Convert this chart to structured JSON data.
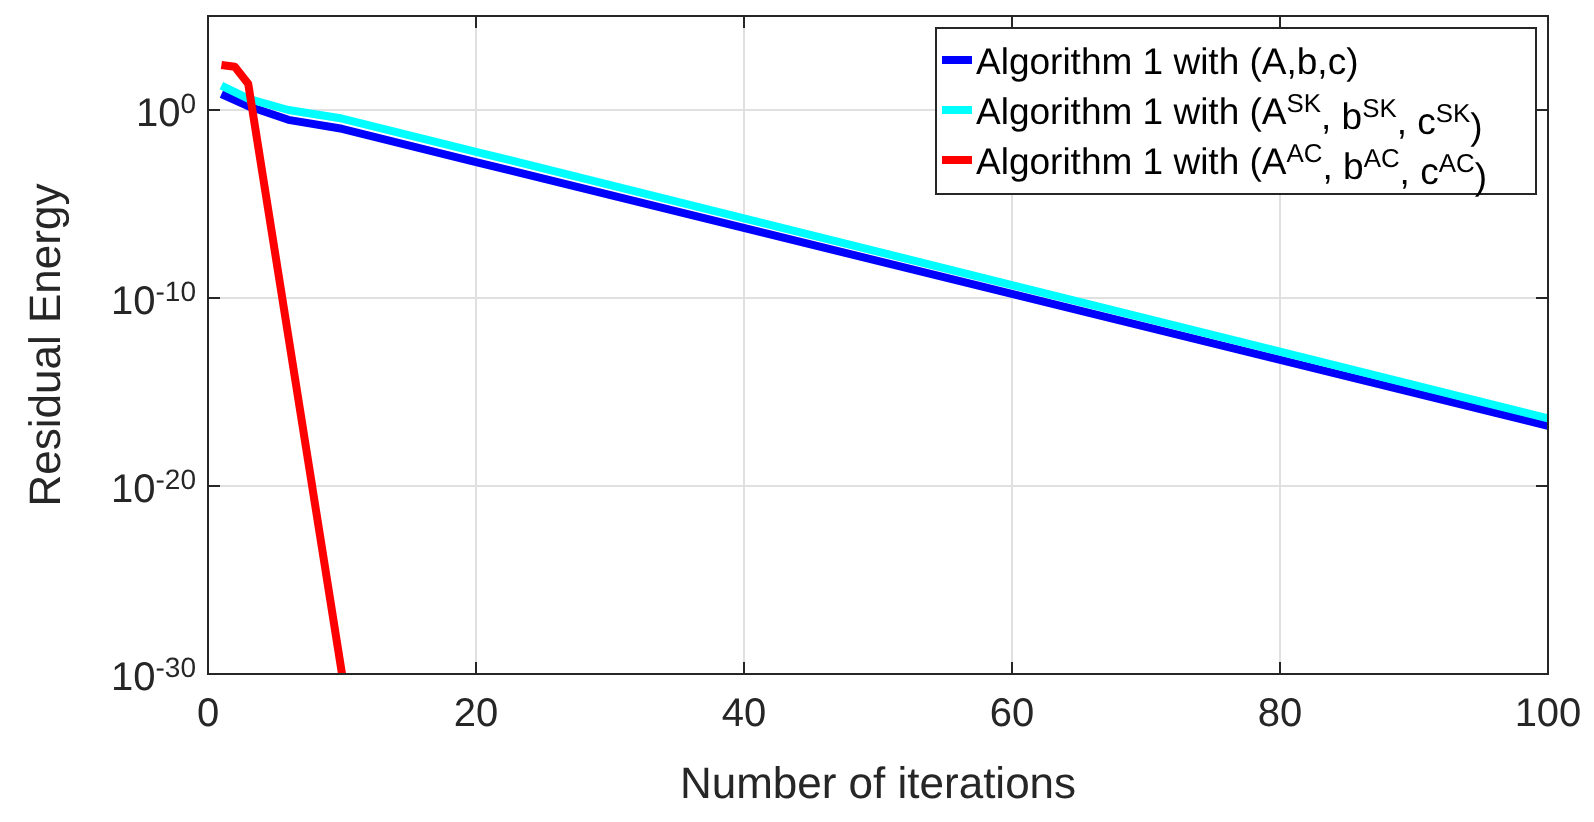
{
  "chart_data": {
    "type": "line",
    "xlabel": "Number of iterations",
    "ylabel": "Residual Energy",
    "log": true,
    "grid": true,
    "legend": "top right",
    "line_style": "solid",
    "xlim": [
      0,
      100
    ],
    "xticks": [
      0,
      20,
      40,
      60,
      80,
      100
    ],
    "ylim": [
      1e-30,
      100000.0
    ],
    "yticks": [
      {
        "value": 1,
        "label": "10$^{0}$"
      },
      {
        "value": 1e-10,
        "label": "10$^{-10}$"
      },
      {
        "value": 1e-20,
        "label": "10$^{-20}$"
      },
      {
        "value": 1e-30,
        "label": "10$^{-30}$"
      }
    ],
    "series": [
      {
        "name": "Algorithm 1 with (A,b,c)",
        "color": "#0000ff",
        "x": [
          1,
          3,
          6,
          10,
          20,
          100
        ],
        "values": [
          7,
          1.6,
          0.3,
          0.1,
          0.0017,
          1.6e-17
        ]
      },
      {
        "name": "Algorithm 1 with (A$^{SK}$, b$^{SK}$, c$^{SK}$)",
        "color": "#00ffff",
        "x": [
          1,
          3,
          6,
          10,
          20,
          100
        ],
        "values": [
          20,
          4,
          1,
          0.35,
          0.006,
          4e-17
        ]
      },
      {
        "name": "Algorithm 1 with (A$^{AC}$, b$^{AC}$, c$^{AC}$)",
        "color": "#ff0000",
        "x": [
          1,
          2,
          3,
          10
        ],
        "values": [
          250,
          200,
          25,
          1e-30
        ]
      }
    ]
  }
}
